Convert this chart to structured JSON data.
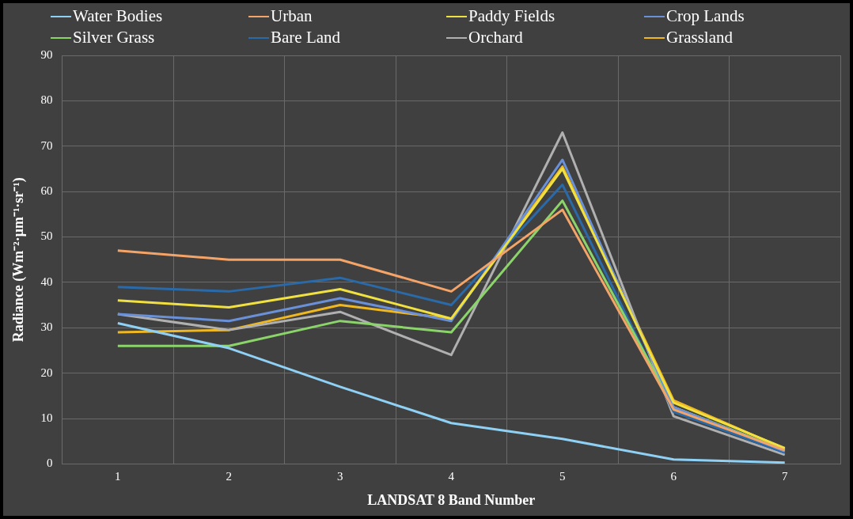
{
  "chart_data": {
    "type": "line",
    "xlabel": "LANDSAT 8 Band Number",
    "ylabel": "Radiance (Wm⁻²·μm⁻¹·sr⁻¹)",
    "categories": [
      "1",
      "2",
      "3",
      "4",
      "5",
      "6",
      "7"
    ],
    "ylim": [
      0,
      90
    ],
    "yticks": [
      0,
      10,
      20,
      30,
      40,
      50,
      60,
      70,
      80,
      90
    ],
    "grid": true,
    "legend": "top",
    "marker": "none",
    "line_style": "solid",
    "series": [
      {
        "name": "Water Bodies",
        "color": "#8fd0f5",
        "values": [
          31,
          25.5,
          17,
          9,
          5.5,
          1,
          0.3
        ]
      },
      {
        "name": "Urban",
        "color": "#f5a468",
        "values": [
          47,
          45,
          45,
          38,
          56,
          12,
          3
        ]
      },
      {
        "name": "Paddy Fields",
        "color": "#f0e040",
        "values": [
          36,
          34.5,
          38.5,
          32,
          65,
          13.5,
          3.5
        ]
      },
      {
        "name": "Crop Lands",
        "color": "#6a90d8",
        "values": [
          33,
          31.5,
          36.5,
          31.5,
          67,
          12.5,
          2.8
        ]
      },
      {
        "name": "Silver Grass",
        "color": "#8ad46a",
        "values": [
          26,
          26,
          31.5,
          29,
          58,
          12.5,
          3
        ]
      },
      {
        "name": "Bare Land",
        "color": "#2a6aa8",
        "values": [
          39,
          38,
          41,
          35,
          61.5,
          11.5,
          2.5
        ]
      },
      {
        "name": "Orchard",
        "color": "#b0b0b0",
        "values": [
          33,
          29.5,
          33.5,
          24,
          73,
          10.5,
          2
        ]
      },
      {
        "name": "Grassland",
        "color": "#f0b820",
        "values": [
          29,
          29.5,
          35,
          32,
          65.5,
          14,
          3.3
        ]
      }
    ]
  }
}
